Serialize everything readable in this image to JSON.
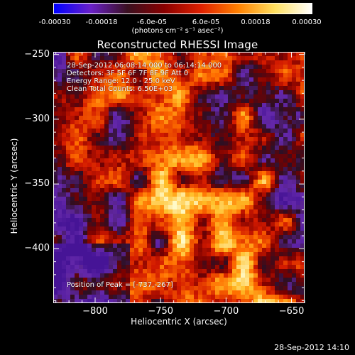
{
  "colorbar": {
    "ticks": [
      "-0.00030",
      "-0.00018",
      "-6.0e-05",
      "6.0e-05",
      "0.00018",
      "0.00030"
    ],
    "units": "(photons cm⁻² s⁻¹ asec⁻²)",
    "range": [
      -0.0003,
      0.0003
    ],
    "colormap": [
      "#0000ff",
      "#6a20c8",
      "#3a1020",
      "#8a0000",
      "#e02000",
      "#ff8000",
      "#ffe060",
      "#ffffff"
    ]
  },
  "chart_data": {
    "type": "heatmap",
    "title": "Reconstructed RHESSI Image",
    "xlabel": "Heliocentric X (arcsec)",
    "ylabel": "Heliocentric Y (arcsec)",
    "xlim": [
      -832,
      -640
    ],
    "ylim": [
      -442,
      -248
    ],
    "xticks": [
      "−800",
      "−750",
      "−700",
      "−650"
    ],
    "xtick_values": [
      -800,
      -750,
      -700,
      -650
    ],
    "yticks": [
      "−250",
      "−300",
      "−350",
      "−400"
    ],
    "ytick_values": [
      -250,
      -300,
      -350,
      -400
    ],
    "annotations": {
      "time": "28-Sep-2012 06:08:14.000 to 06:14:14.000",
      "detectors": "Detectors: 3F 5F 6F 7F 8F 9F  Att 0",
      "energy": "Energy Range: 12.0 - 25.0 keV",
      "clean": "Clean    Total Counts: 6.50E+03",
      "peak": "Position of Peak = [-737,-267]"
    },
    "peak": [
      -737,
      -267
    ]
  },
  "footer": "28-Sep-2012 14:10"
}
